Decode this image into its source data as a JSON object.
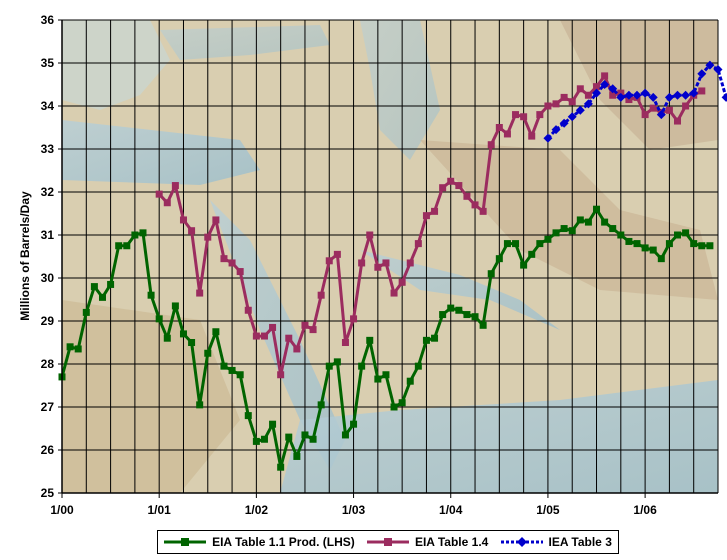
{
  "chart_data": {
    "type": "line",
    "title": "",
    "ylabel": "Millions of Barrels/Day",
    "ylim": [
      25,
      36
    ],
    "yticks": [
      "25",
      "26",
      "27",
      "28",
      "29",
      "30",
      "31",
      "32",
      "33",
      "34",
      "35",
      "36"
    ],
    "x_ticks": [
      {
        "t": 0,
        "label": "1/00"
      },
      {
        "t": 12,
        "label": "1/01"
      },
      {
        "t": 24,
        "label": "1/02"
      },
      {
        "t": 36,
        "label": "1/03"
      },
      {
        "t": 48,
        "label": "1/04"
      },
      {
        "t": 60,
        "label": "1/05"
      },
      {
        "t": 72,
        "label": "1/06"
      }
    ],
    "grid": true,
    "legend_position": "bottom",
    "series": [
      {
        "name": "EIA Table 1.1 Prod. (LHS)",
        "color": "#006400",
        "marker": "square",
        "x": [
          "2000-01",
          "2000-02",
          "2000-03",
          "2000-04",
          "2000-05",
          "2000-06",
          "2000-07",
          "2000-08",
          "2000-09",
          "2000-10",
          "2000-11",
          "2000-12",
          "2001-01",
          "2001-02",
          "2001-03",
          "2001-04",
          "2001-05",
          "2001-06",
          "2001-07",
          "2001-08",
          "2001-09",
          "2001-10",
          "2001-11",
          "2001-12",
          "2002-01",
          "2002-02",
          "2002-03",
          "2002-04",
          "2002-05",
          "2002-06",
          "2002-07",
          "2002-08",
          "2002-09",
          "2002-10",
          "2002-11",
          "2002-12",
          "2003-01",
          "2003-02",
          "2003-03",
          "2003-04",
          "2003-05",
          "2003-06",
          "2003-07",
          "2003-08",
          "2003-09",
          "2003-10",
          "2003-11",
          "2003-12",
          "2004-01",
          "2004-02",
          "2004-03",
          "2004-04",
          "2004-05",
          "2004-06",
          "2004-07",
          "2004-08",
          "2004-09",
          "2004-10",
          "2004-11",
          "2004-12",
          "2005-01",
          "2005-02",
          "2005-03",
          "2005-04",
          "2005-05",
          "2005-06",
          "2005-07",
          "2005-08",
          "2005-09",
          "2005-10",
          "2005-11",
          "2005-12",
          "2006-01",
          "2006-02",
          "2006-03",
          "2006-04",
          "2006-05",
          "2006-06",
          "2006-07",
          "2006-08",
          "2006-09"
        ],
        "values": [
          27.7,
          28.4,
          28.35,
          29.2,
          29.8,
          29.55,
          29.85,
          30.75,
          30.75,
          31.0,
          31.05,
          29.6,
          29.05,
          28.6,
          29.35,
          28.7,
          28.5,
          27.05,
          28.25,
          28.75,
          27.95,
          27.85,
          27.75,
          26.8,
          26.2,
          26.25,
          26.6,
          25.6,
          26.3,
          25.85,
          26.35,
          26.25,
          27.05,
          27.95,
          28.05,
          26.35,
          26.6,
          27.95,
          28.55,
          27.65,
          27.75,
          27.0,
          27.1,
          27.6,
          27.95,
          28.55,
          28.6,
          29.15,
          29.3,
          29.25,
          29.15,
          29.1,
          28.9,
          30.1,
          30.45,
          30.8,
          30.8,
          30.3,
          30.55,
          30.8,
          30.9,
          31.05,
          31.15,
          31.1,
          31.35,
          31.3,
          31.6,
          31.3,
          31.15,
          31.0,
          30.85,
          30.8,
          30.7,
          30.65,
          30.45,
          30.8,
          31.0,
          31.05,
          30.8,
          30.75,
          30.75
        ]
      },
      {
        "name": "EIA Table 1.4",
        "color": "#9b2c5f",
        "marker": "square",
        "x": [
          "2001-01",
          "2001-02",
          "2001-03",
          "2001-04",
          "2001-05",
          "2001-06",
          "2001-07",
          "2001-08",
          "2001-09",
          "2001-10",
          "2001-11",
          "2001-12",
          "2002-01",
          "2002-02",
          "2002-03",
          "2002-04",
          "2002-05",
          "2002-06",
          "2002-07",
          "2002-08",
          "2002-09",
          "2002-10",
          "2002-11",
          "2002-12",
          "2003-01",
          "2003-02",
          "2003-03",
          "2003-04",
          "2003-05",
          "2003-06",
          "2003-07",
          "2003-08",
          "2003-09",
          "2003-10",
          "2003-11",
          "2003-12",
          "2004-01",
          "2004-02",
          "2004-03",
          "2004-04",
          "2004-05",
          "2004-06",
          "2004-07",
          "2004-08",
          "2004-09",
          "2004-10",
          "2004-11",
          "2004-12",
          "2005-01",
          "2005-02",
          "2005-03",
          "2005-04",
          "2005-05",
          "2005-06",
          "2005-07",
          "2005-08",
          "2005-09",
          "2005-10",
          "2005-11",
          "2005-12",
          "2006-01",
          "2006-02",
          "2006-03",
          "2006-04",
          "2006-05",
          "2006-06",
          "2006-07",
          "2006-08"
        ],
        "values": [
          31.95,
          31.75,
          32.15,
          31.35,
          31.1,
          29.65,
          30.95,
          31.35,
          30.45,
          30.35,
          30.15,
          29.25,
          28.65,
          28.65,
          28.85,
          27.75,
          28.6,
          28.35,
          28.9,
          28.8,
          29.6,
          30.4,
          30.55,
          28.5,
          29.05,
          30.35,
          31.0,
          30.25,
          30.35,
          29.65,
          29.9,
          30.35,
          30.8,
          31.45,
          31.55,
          32.1,
          32.25,
          32.15,
          31.9,
          31.7,
          31.55,
          33.1,
          33.5,
          33.35,
          33.8,
          33.75,
          33.3,
          33.8,
          34.0,
          34.05,
          34.2,
          34.1,
          34.4,
          34.25,
          34.45,
          34.7,
          34.25,
          34.3,
          34.15,
          34.2,
          33.8,
          33.95,
          33.85,
          33.9,
          33.65,
          34.0,
          34.25,
          34.35
        ]
      },
      {
        "name": "IEA Table 3",
        "color": "#0000cc",
        "marker": "diamond",
        "x": [
          "2005-01",
          "2005-02",
          "2005-03",
          "2005-04",
          "2005-05",
          "2005-06",
          "2005-07",
          "2005-08",
          "2005-09",
          "2005-10",
          "2005-11",
          "2005-12",
          "2006-01",
          "2006-02",
          "2006-03",
          "2006-04",
          "2006-05",
          "2006-06",
          "2006-07",
          "2006-08",
          "2006-09",
          "2006-10",
          "2006-11"
        ],
        "values": [
          33.25,
          33.45,
          33.6,
          33.75,
          33.9,
          34.05,
          34.3,
          34.5,
          34.4,
          34.2,
          34.25,
          34.25,
          34.3,
          34.2,
          33.8,
          34.2,
          34.25,
          34.25,
          34.3,
          34.75,
          34.95,
          34.85,
          34.2
        ]
      }
    ]
  }
}
